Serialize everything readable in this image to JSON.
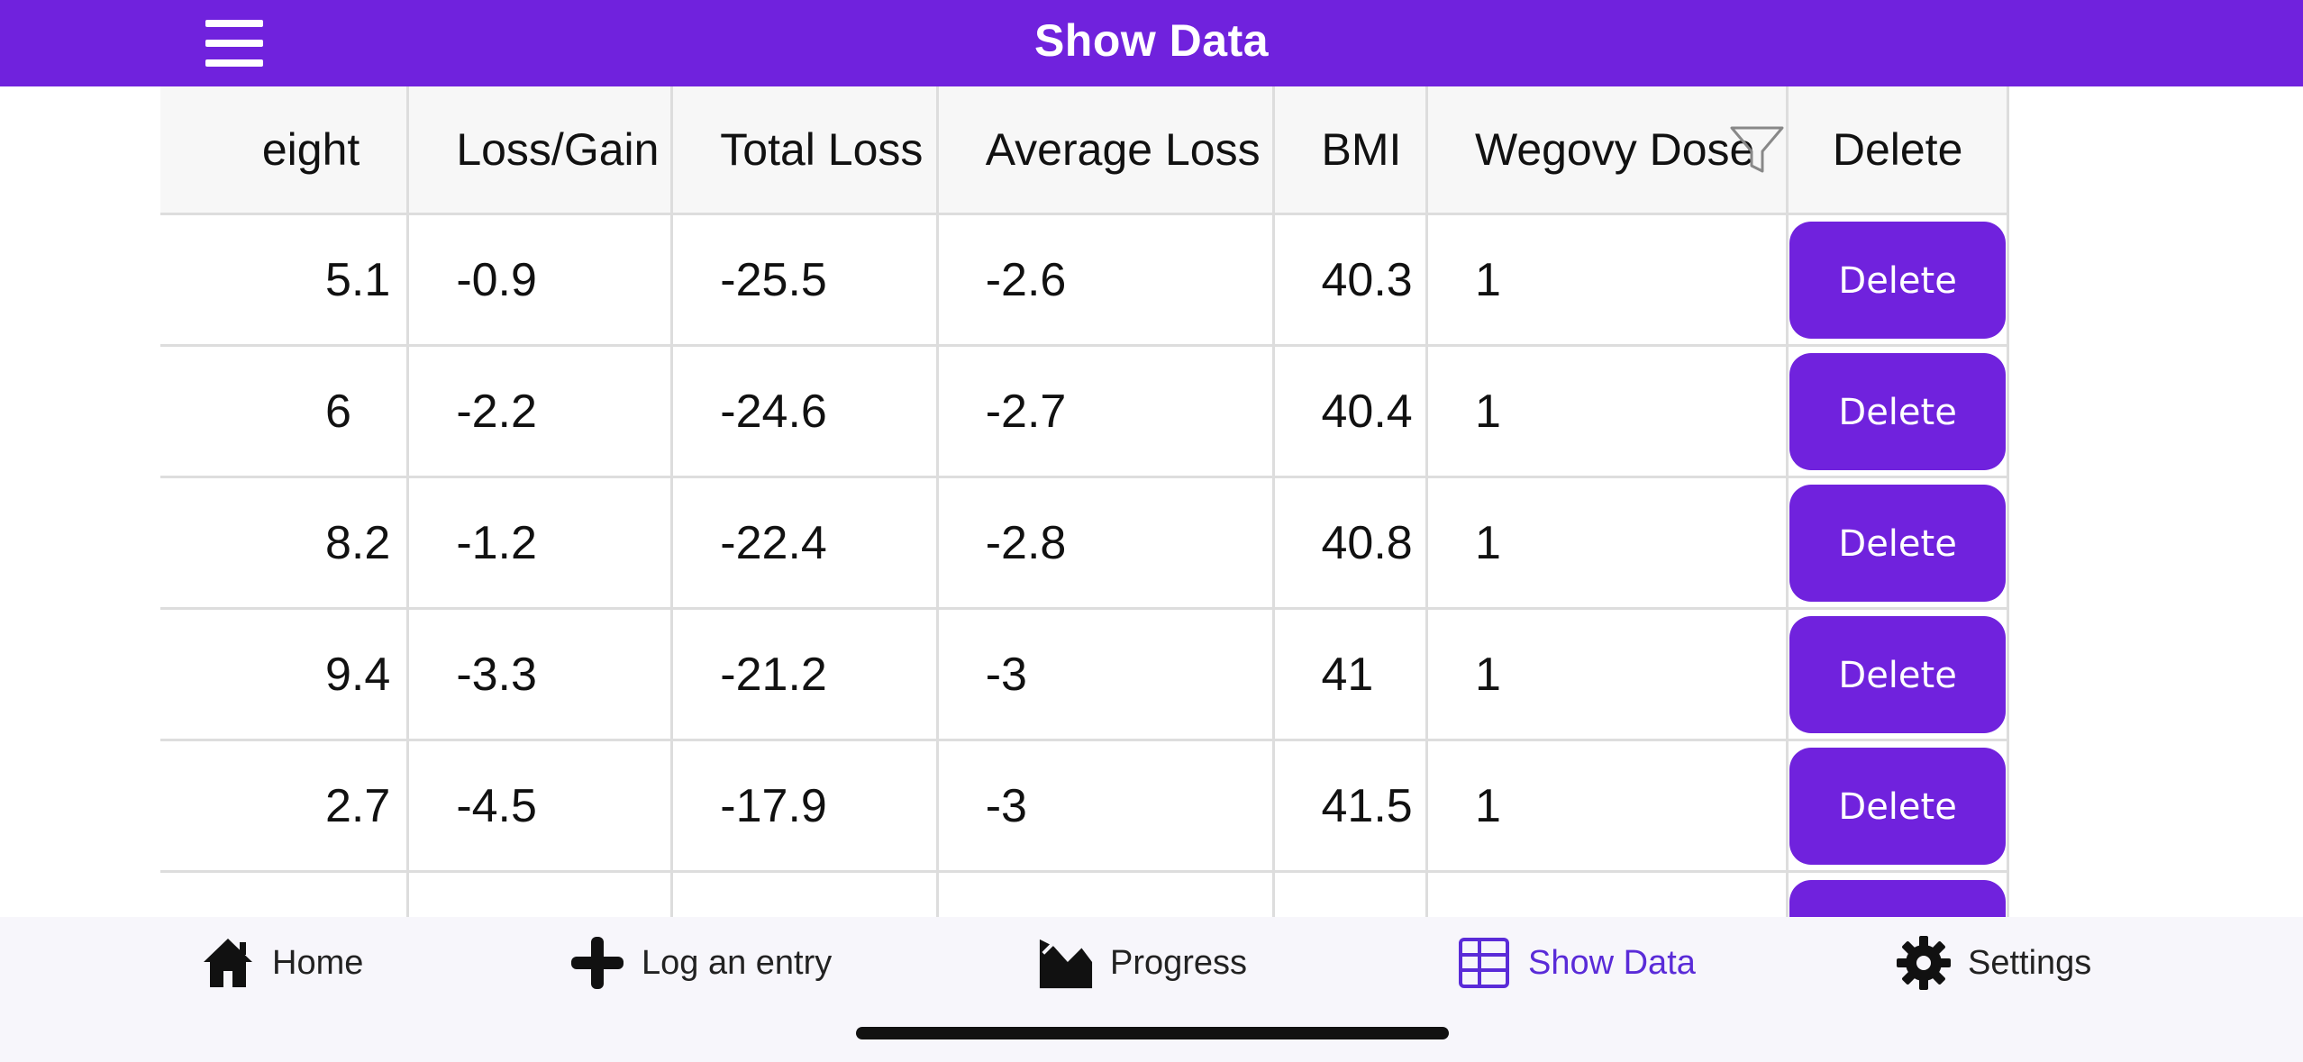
{
  "header": {
    "title": "Show Data",
    "menu_icon": "hamburger-menu-icon",
    "background": "#7022dd"
  },
  "table": {
    "columns": [
      "eight",
      "Loss/Gain",
      "Total Loss",
      "Average Loss",
      "BMI",
      "Wegovy Dose",
      "Delete"
    ],
    "rows": [
      [
        "5.1",
        "-0.9",
        "-25.5",
        "-2.6",
        "40.3",
        "1"
      ],
      [
        "6",
        "-2.2",
        "-24.6",
        "-2.7",
        "40.4",
        "1"
      ],
      [
        "8.2",
        "-1.2",
        "-22.4",
        "-2.8",
        "40.8",
        "1"
      ],
      [
        "9.4",
        "-3.3",
        "-21.2",
        "-3",
        "41",
        "1"
      ],
      [
        "2.7",
        "-4.5",
        "-17.9",
        "-3",
        "41.5",
        "1"
      ]
    ],
    "delete_label": "Delete",
    "filter_icon": "filter-icon"
  },
  "tabbar": {
    "items": [
      {
        "label": "Home",
        "icon": "home-icon"
      },
      {
        "label": "Log an entry",
        "icon": "plus-icon"
      },
      {
        "label": "Progress",
        "icon": "chart-area-icon"
      },
      {
        "label": "Show Data",
        "icon": "table-icon",
        "active": true
      },
      {
        "label": "Settings",
        "icon": "gear-icon"
      }
    ],
    "active_color": "#5a2bd8"
  }
}
